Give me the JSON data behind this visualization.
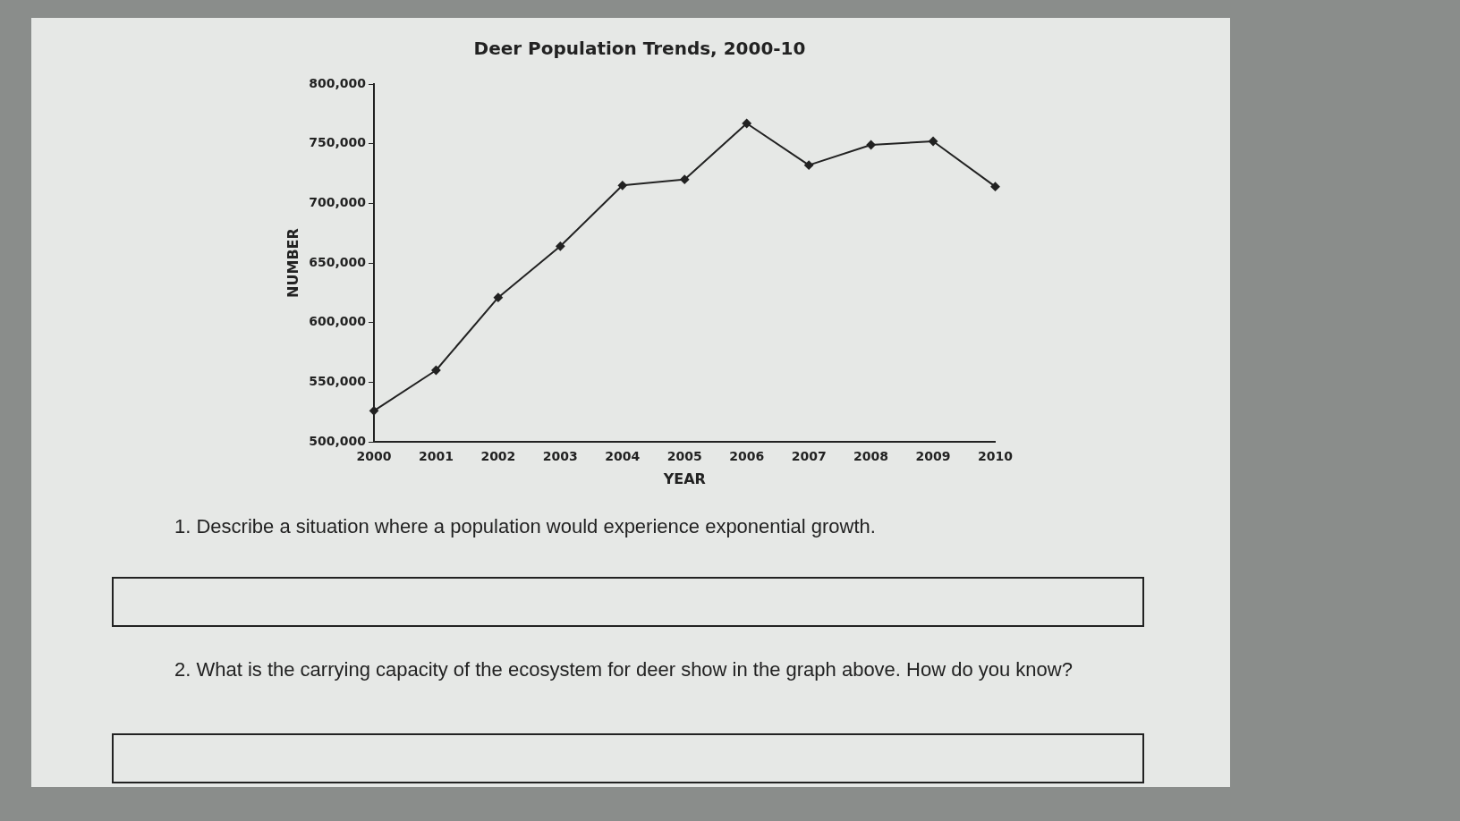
{
  "chart_data": {
    "type": "line",
    "title": "Deer Population Trends, 2000-10",
    "xlabel": "YEAR",
    "ylabel": "NUMBER",
    "categories": [
      "2000",
      "2001",
      "2002",
      "2003",
      "2004",
      "2005",
      "2006",
      "2007",
      "2008",
      "2009",
      "2010"
    ],
    "values": [
      526000,
      560000,
      621000,
      664000,
      715000,
      720000,
      767000,
      732000,
      749000,
      752000,
      714000
    ],
    "color": "#222222",
    "marker": "diamond",
    "line_style": "solid",
    "grid": false,
    "legend": false,
    "ylim": [
      500000,
      800000
    ],
    "yticks": [
      {
        "value": 500000,
        "label": "500,000"
      },
      {
        "value": 550000,
        "label": "550,000"
      },
      {
        "value": 600000,
        "label": "600,000"
      },
      {
        "value": 650000,
        "label": "650,000"
      },
      {
        "value": 700000,
        "label": "700,000"
      },
      {
        "value": 750000,
        "label": "750,000"
      },
      {
        "value": 800000,
        "label": "800,000"
      }
    ],
    "annotations": [
      "1. Describe a situation where a population would experience exponential growth.",
      "2. What is the carrying capacity of the ecosystem for deer show in the graph above. How do you know?"
    ]
  }
}
